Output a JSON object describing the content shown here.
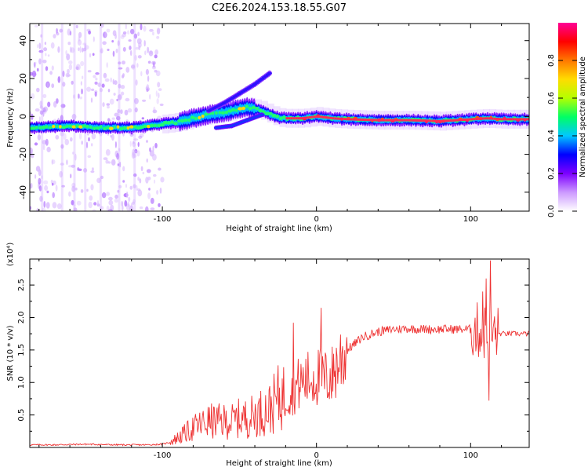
{
  "figure": {
    "title": "C2E6.2024.153.18.55.G07"
  },
  "chart_data": [
    {
      "type": "heatmap",
      "xlabel": "Height of straight line (km)",
      "ylabel": "Frequency (Hz)",
      "xlim": [
        -186,
        138
      ],
      "ylim": [
        -50,
        49
      ],
      "xticks": [
        -100,
        0,
        100
      ],
      "yticks": [
        -40,
        -20,
        0,
        20,
        40
      ],
      "colorbar": {
        "label": "Normalized spectral amplitude",
        "range": [
          0,
          1
        ],
        "ticks": [
          0.0,
          0.2,
          0.4,
          0.6,
          0.8
        ],
        "colors": [
          "#ffffff",
          "#cc99ff",
          "#7d00ff",
          "#0000ff",
          "#00c8ff",
          "#00ff64",
          "#b4ff00",
          "#ffdc00",
          "#ff7800",
          "#ff0000",
          "#ff0096"
        ]
      },
      "ridge": {
        "x": [
          -186,
          -160,
          -140,
          -120,
          -100,
          -90,
          -80,
          -70,
          -60,
          -50,
          -45,
          -40,
          -35,
          -30,
          -25,
          -20,
          -10,
          0,
          10,
          20,
          40,
          60,
          80,
          100,
          110,
          120,
          138
        ],
        "y": [
          -6,
          -5,
          -6,
          -6,
          -4,
          -3,
          -1,
          1,
          2,
          4,
          5,
          4,
          3,
          1,
          -0.5,
          -1,
          -1,
          0,
          -1,
          -1.5,
          -2,
          -2,
          -2.5,
          -1.5,
          -1,
          -1.5,
          -1.5
        ]
      },
      "upper_branch": {
        "x": [
          -70,
          -60,
          -50,
          -40,
          -30
        ],
        "y": [
          3,
          7,
          12,
          17,
          23
        ]
      },
      "lower_branch": {
        "x": [
          -65,
          -55,
          -45,
          -35
        ],
        "y": [
          -6,
          -5,
          -2,
          1
        ]
      }
    },
    {
      "type": "line",
      "xlabel": "Height of straight line (km)",
      "ylabel": "SNR (10 * v/v)",
      "y_multiplier": "(x10⁴)",
      "xlim": [
        -186,
        138
      ],
      "ylim": [
        0,
        2.9
      ],
      "xticks": [
        -100,
        0,
        100
      ],
      "yticks": [
        0.5,
        1.0,
        1.5,
        2.0,
        2.5
      ],
      "color": "#ee3333",
      "series": [
        {
          "x": [
            -186,
            -170,
            -150,
            -130,
            -110,
            -100,
            -95,
            -90,
            -85,
            -80,
            -75,
            -70,
            -65,
            -60,
            -55,
            -50,
            -45,
            -40,
            -35,
            -30,
            -25,
            -20,
            -15,
            -10,
            -5,
            0,
            5,
            10,
            15,
            20,
            25,
            30,
            40,
            50,
            60,
            70,
            80,
            90,
            100,
            103,
            106,
            108,
            110,
            112,
            114,
            116,
            120,
            130,
            138
          ],
          "y": [
            0.04,
            0.04,
            0.05,
            0.04,
            0.04,
            0.05,
            0.08,
            0.15,
            0.22,
            0.3,
            0.35,
            0.4,
            0.4,
            0.4,
            0.4,
            0.45,
            0.45,
            0.5,
            0.55,
            0.6,
            0.75,
            0.8,
            0.9,
            1.0,
            1.05,
            1.1,
            1.05,
            1.1,
            1.35,
            1.5,
            1.6,
            1.7,
            1.78,
            1.82,
            1.83,
            1.82,
            1.82,
            1.82,
            1.82,
            1.8,
            1.8,
            1.75,
            1.8,
            1.75,
            1.75,
            1.75,
            1.75,
            1.75,
            1.75
          ]
        }
      ],
      "spikes": [
        {
          "x": -15,
          "y": 1.92
        },
        {
          "x": 3,
          "y": 2.15
        },
        {
          "x": 108,
          "y": 2.4
        },
        {
          "x": 110,
          "y": 2.6
        },
        {
          "x": 113,
          "y": 2.88
        },
        {
          "x": 112,
          "y": 0.72
        }
      ]
    }
  ]
}
